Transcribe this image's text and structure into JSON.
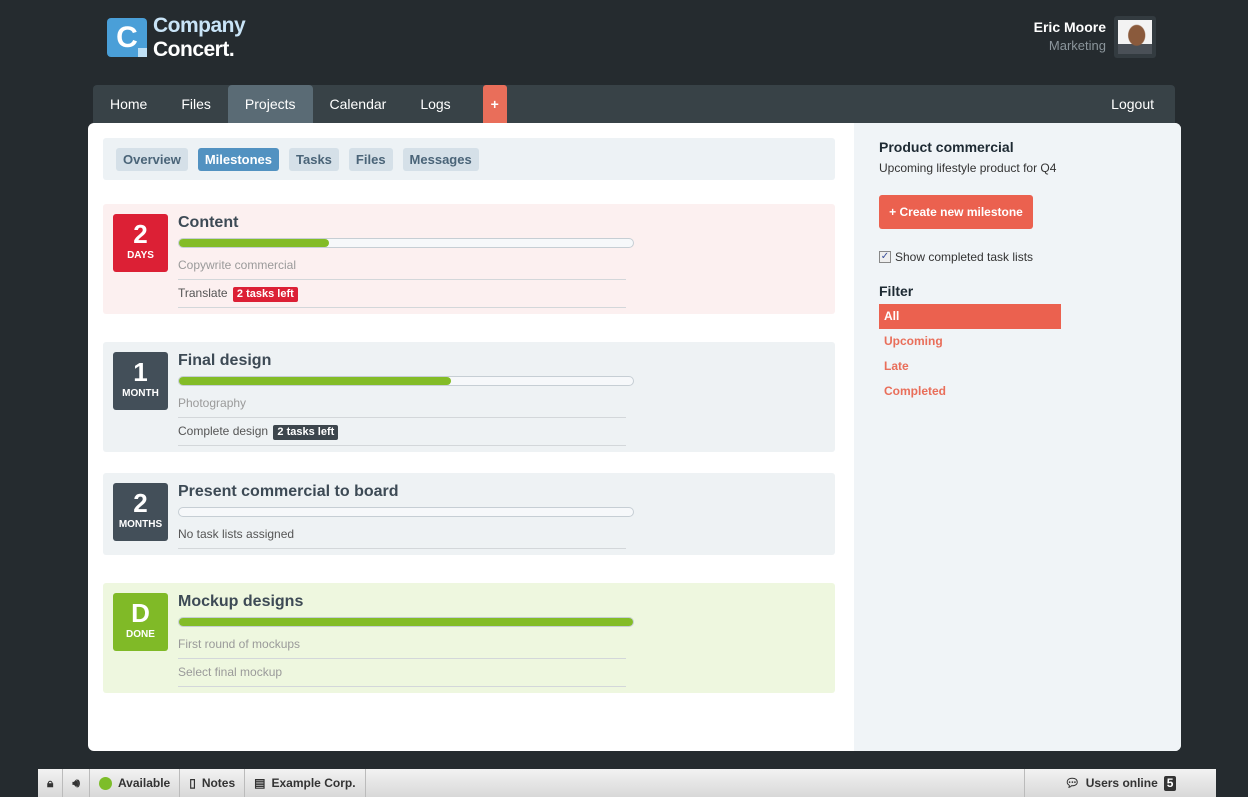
{
  "logo": {
    "line1": "Company",
    "line2": "Concert.",
    "mark": "C"
  },
  "user": {
    "name": "Eric Moore",
    "role": "Marketing"
  },
  "nav": {
    "items": [
      "Home",
      "Files",
      "Projects",
      "Calendar",
      "Logs"
    ],
    "active": "Projects",
    "plus": "+",
    "logout": "Logout"
  },
  "subnav": {
    "items": [
      "Overview",
      "Milestones",
      "Tasks",
      "Files",
      "Messages"
    ],
    "active": "Milestones"
  },
  "milestones": [
    {
      "num": "2",
      "unit": "DAYS",
      "title": "Content",
      "progress_percent": 33,
      "badge_color": "#dc2035",
      "bg": "#fcf0f0",
      "tasks": [
        {
          "text": "Copywrite commercial",
          "done": true
        },
        {
          "text": "Translate",
          "tag": "2 tasks left",
          "tag_color": "#dc2035"
        }
      ]
    },
    {
      "num": "1",
      "unit": "MONTH",
      "title": "Final design",
      "progress_percent": 60,
      "badge_color": "#434f59",
      "bg": "#eef2f4",
      "tasks": [
        {
          "text": "Photography",
          "done": true
        },
        {
          "text": "Complete design",
          "tag": "2 tasks left",
          "tag_color": "#3d464d"
        }
      ]
    },
    {
      "num": "2",
      "unit": "MONTHS",
      "title": "Present commercial to board",
      "progress_percent": 0,
      "badge_color": "#434f59",
      "bg": "#eef2f4",
      "tasks": [
        {
          "text": "No task lists assigned"
        }
      ]
    },
    {
      "num": "D",
      "unit": "DONE",
      "title": "Mockup designs",
      "progress_percent": 100,
      "badge_color": "#80ba27",
      "bg": "#eef7df",
      "tasks": [
        {
          "text": "First round of mockups",
          "done": true
        },
        {
          "text": "Select final mockup",
          "done": true
        }
      ]
    }
  ],
  "side": {
    "title": "Product commercial",
    "desc": "Upcoming lifestyle product for Q4",
    "create": "+ Create new milestone",
    "show_completed": "Show completed task lists",
    "show_completed_checked": true,
    "filter_title": "Filter",
    "filters": [
      "All",
      "Upcoming",
      "Late",
      "Completed"
    ],
    "active_filter": "All"
  },
  "footer": {
    "status": "Available",
    "notes": "Notes",
    "company": "Example Corp.",
    "users_online": "Users online",
    "users_count": "5"
  }
}
